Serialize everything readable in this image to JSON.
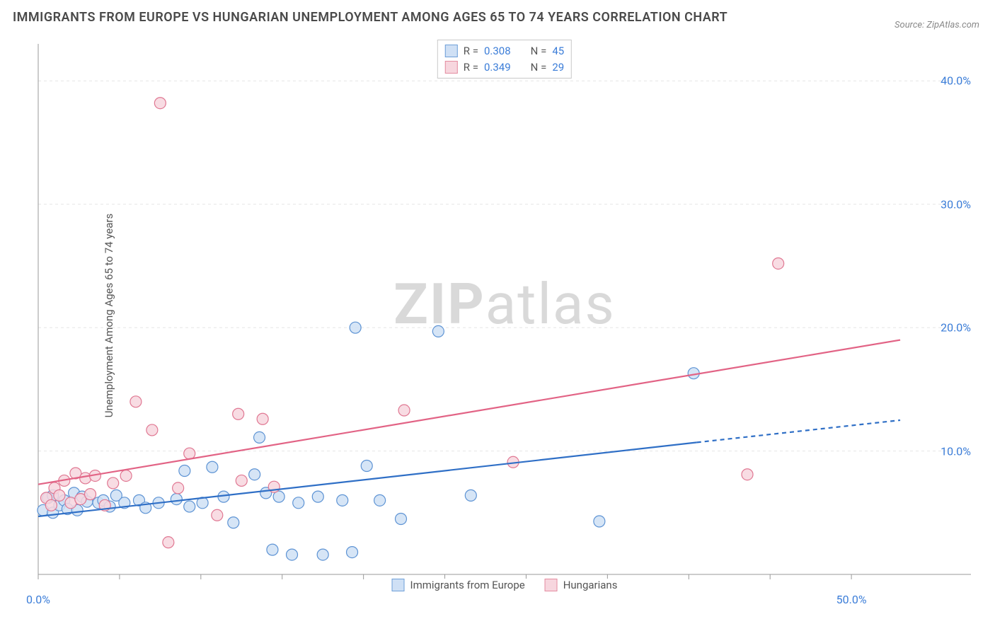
{
  "title": "IMMIGRANTS FROM EUROPE VS HUNGARIAN UNEMPLOYMENT AMONG AGES 65 TO 74 YEARS CORRELATION CHART",
  "source": "Source: ZipAtlas.com",
  "watermark_bold": "ZIP",
  "watermark_rest": "atlas",
  "yaxis_label": "Unemployment Among Ages 65 to 74 years",
  "chart": {
    "type": "scatter",
    "background_color": "#ffffff",
    "grid_color": "#e5e5e5",
    "axis_color": "#999999",
    "xlim": [
      0,
      55
    ],
    "ylim": [
      0,
      43
    ],
    "xticks": [
      {
        "v": 0,
        "label": "0.0%"
      },
      {
        "v": 50,
        "label": "50.0%"
      }
    ],
    "xticks_minor": [
      5,
      10,
      15,
      20,
      25,
      30,
      35,
      40,
      45
    ],
    "yticks": [
      {
        "v": 10,
        "label": "10.0%"
      },
      {
        "v": 20,
        "label": "20.0%"
      },
      {
        "v": 30,
        "label": "30.0%"
      },
      {
        "v": 40,
        "label": "40.0%"
      }
    ],
    "stats_legend": [
      {
        "color_fill": "#cfe0f5",
        "color_stroke": "#6e9fd8",
        "r_label": "R =",
        "r": "0.308",
        "n_label": "N =",
        "n": "45"
      },
      {
        "color_fill": "#f7d6de",
        "color_stroke": "#e48ca0",
        "r_label": "R =",
        "r": "0.349",
        "n_label": "N =",
        "n": "29"
      }
    ],
    "series_legend": [
      {
        "color_fill": "#cfe0f5",
        "color_stroke": "#6e9fd8",
        "label": "Immigrants from Europe"
      },
      {
        "color_fill": "#f7d6de",
        "color_stroke": "#e48ca0",
        "label": "Hungarians"
      }
    ],
    "marker_radius": 8,
    "marker_opacity": 0.85,
    "series": [
      {
        "name": "Immigrants from Europe",
        "color_fill": "#cfe0f5",
        "color_stroke": "#5d93d4",
        "trend": {
          "x1": 0,
          "y1": 4.7,
          "x2_solid": 40.5,
          "y2_solid": 10.7,
          "x2_dash": 53,
          "y2_dash": 12.5,
          "stroke": "#2f6fc6",
          "width": 2.2
        },
        "points": [
          [
            0.3,
            5.2
          ],
          [
            0.6,
            6.2
          ],
          [
            0.9,
            5.0
          ],
          [
            0.9,
            6.4
          ],
          [
            1.3,
            5.6
          ],
          [
            1.6,
            6.0
          ],
          [
            1.8,
            5.3
          ],
          [
            2.2,
            6.6
          ],
          [
            2.4,
            5.2
          ],
          [
            2.7,
            6.3
          ],
          [
            3.0,
            5.9
          ],
          [
            3.7,
            5.8
          ],
          [
            4.0,
            6.0
          ],
          [
            4.4,
            5.5
          ],
          [
            4.8,
            6.4
          ],
          [
            5.3,
            5.8
          ],
          [
            6.2,
            6.0
          ],
          [
            6.6,
            5.4
          ],
          [
            7.4,
            5.8
          ],
          [
            8.5,
            6.1
          ],
          [
            9.0,
            8.4
          ],
          [
            9.3,
            5.5
          ],
          [
            10.1,
            5.8
          ],
          [
            10.7,
            8.7
          ],
          [
            11.4,
            6.3
          ],
          [
            12.0,
            4.2
          ],
          [
            13.3,
            8.1
          ],
          [
            13.6,
            11.1
          ],
          [
            14.0,
            6.6
          ],
          [
            14.4,
            2.0
          ],
          [
            14.8,
            6.3
          ],
          [
            15.6,
            1.6
          ],
          [
            16.0,
            5.8
          ],
          [
            17.2,
            6.3
          ],
          [
            17.5,
            1.6
          ],
          [
            18.7,
            6.0
          ],
          [
            19.3,
            1.8
          ],
          [
            19.5,
            20.0
          ],
          [
            20.2,
            8.8
          ],
          [
            21.0,
            6.0
          ],
          [
            22.3,
            4.5
          ],
          [
            24.6,
            19.7
          ],
          [
            26.6,
            6.4
          ],
          [
            34.5,
            4.3
          ],
          [
            40.3,
            16.3
          ]
        ]
      },
      {
        "name": "Hungarians",
        "color_fill": "#f7d6de",
        "color_stroke": "#e07792",
        "trend": {
          "x1": 0,
          "y1": 7.3,
          "x2_solid": 53,
          "y2_solid": 19.0,
          "x2_dash": 53,
          "y2_dash": 19.0,
          "stroke": "#e26385",
          "width": 2.2
        },
        "points": [
          [
            0.5,
            6.2
          ],
          [
            0.8,
            5.6
          ],
          [
            1.0,
            7.0
          ],
          [
            1.3,
            6.4
          ],
          [
            1.6,
            7.6
          ],
          [
            2.0,
            5.8
          ],
          [
            2.3,
            8.2
          ],
          [
            2.6,
            6.1
          ],
          [
            2.9,
            7.8
          ],
          [
            3.2,
            6.5
          ],
          [
            3.5,
            8.0
          ],
          [
            4.1,
            5.6
          ],
          [
            4.6,
            7.4
          ],
          [
            5.4,
            8.0
          ],
          [
            6.0,
            14.0
          ],
          [
            7.0,
            11.7
          ],
          [
            7.5,
            38.2
          ],
          [
            8.0,
            2.6
          ],
          [
            8.6,
            7.0
          ],
          [
            9.3,
            9.8
          ],
          [
            11.0,
            4.8
          ],
          [
            12.3,
            13.0
          ],
          [
            12.5,
            7.6
          ],
          [
            13.8,
            12.6
          ],
          [
            14.5,
            7.1
          ],
          [
            22.5,
            13.3
          ],
          [
            29.2,
            9.1
          ],
          [
            43.6,
            8.1
          ],
          [
            45.5,
            25.2
          ]
        ]
      }
    ]
  }
}
